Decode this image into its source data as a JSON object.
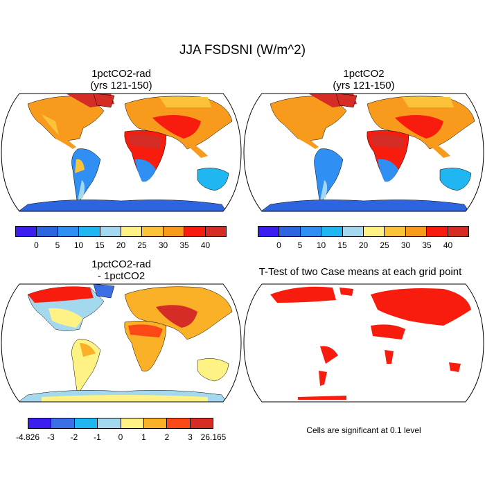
{
  "figure": {
    "title": "JJA FSDSNI (W/m^2)",
    "panels": [
      {
        "id": "a",
        "title_line1": "1pctCO2-rad",
        "title_line2": "(yrs 121-150)"
      },
      {
        "id": "b",
        "title_line1": "1pctCO2",
        "title_line2": "(yrs 121-150)"
      },
      {
        "id": "c",
        "title_line1": "1pctCO2-rad",
        "title_line2": "- 1pctCO2"
      },
      {
        "id": "d",
        "title_line1": "T-Test of two Case means at each grid point",
        "title_line2": ""
      }
    ],
    "note": "Cells are significant at 0.1 level"
  },
  "colorbars": {
    "abs": {
      "colors": [
        "#3a1ff0",
        "#2d64e0",
        "#2f8ff2",
        "#1fb6f2",
        "#a4d8ef",
        "#fdf283",
        "#fbc33a",
        "#f89a1c",
        "#f81c0e",
        "#d52c26"
      ],
      "labels": [
        "0",
        "5",
        "10",
        "15",
        "20",
        "25",
        "30",
        "35",
        "40"
      ]
    },
    "diff": {
      "colors": [
        "#3a1ff0",
        "#3c6fe6",
        "#1fb6f2",
        "#a4d8ef",
        "#fdf283",
        "#fbb127",
        "#fb4817",
        "#d52c26"
      ],
      "labels": [
        "-4.826",
        "-3",
        "-2",
        "-1",
        "0",
        "1",
        "2",
        "3",
        "26.165"
      ]
    }
  }
}
